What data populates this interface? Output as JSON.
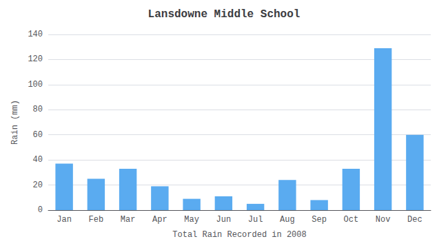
{
  "chart_data": {
    "type": "bar",
    "title": "Lansdowne Middle School",
    "xlabel": "Total Rain Recorded in 2008",
    "ylabel": "Rain (mm)",
    "categories": [
      "Jan",
      "Feb",
      "Mar",
      "Apr",
      "May",
      "Jun",
      "Jul",
      "Aug",
      "Sep",
      "Oct",
      "Nov",
      "Dec"
    ],
    "values": [
      37,
      25,
      33,
      19,
      9,
      11,
      5,
      24,
      8,
      33,
      129,
      60
    ],
    "color": "#5aabf0",
    "ylim": [
      0,
      140
    ],
    "yticks": [
      0,
      20,
      40,
      60,
      80,
      100,
      120,
      140
    ],
    "grid": true
  }
}
